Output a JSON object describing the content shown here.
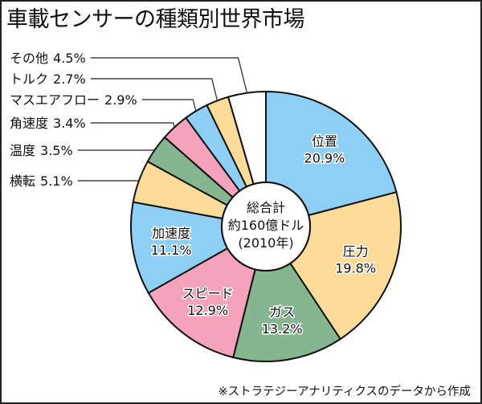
{
  "title": "車載センサーの種類別世界市場",
  "source_note": "※ストラテジーアナリティクスのデータから作成",
  "chart_data": {
    "type": "pie",
    "title": "車載センサーの種類別世界市場",
    "center_text": [
      "総合計",
      "約160億ドル",
      "(2010年)"
    ],
    "slices": [
      {
        "label": "位置",
        "value": 20.9,
        "value_text": "20.9%",
        "color": "#8ecff5",
        "placement": "inside"
      },
      {
        "label": "圧力",
        "value": 19.8,
        "value_text": "19.8%",
        "color": "#fddc9a",
        "placement": "inside"
      },
      {
        "label": "ガス",
        "value": 13.2,
        "value_text": "13.2%",
        "color": "#86b68f",
        "placement": "inside"
      },
      {
        "label": "スピード",
        "value": 12.9,
        "value_text": "12.9%",
        "color": "#f5a3bb",
        "placement": "inside"
      },
      {
        "label": "加速度",
        "value": 11.1,
        "value_text": "11.1%",
        "color": "#8ecff5",
        "placement": "inside"
      },
      {
        "label": "横転",
        "value": 5.1,
        "value_text": "5.1%",
        "color": "#fddc9a",
        "placement": "outside"
      },
      {
        "label": "温度",
        "value": 3.5,
        "value_text": "3.5%",
        "color": "#86b68f",
        "placement": "outside"
      },
      {
        "label": "角速度",
        "value": 3.4,
        "value_text": "3.4%",
        "color": "#f5a3bb",
        "placement": "outside"
      },
      {
        "label": "マスエアフロー",
        "value": 2.9,
        "value_text": "2.9%",
        "color": "#8ecff5",
        "placement": "outside"
      },
      {
        "label": "トルク",
        "value": 2.7,
        "value_text": "2.7%",
        "color": "#fddc9a",
        "placement": "outside"
      },
      {
        "label": "その他",
        "value": 4.5,
        "value_text": "4.5%",
        "color": "#ffffff",
        "placement": "outside"
      }
    ]
  }
}
